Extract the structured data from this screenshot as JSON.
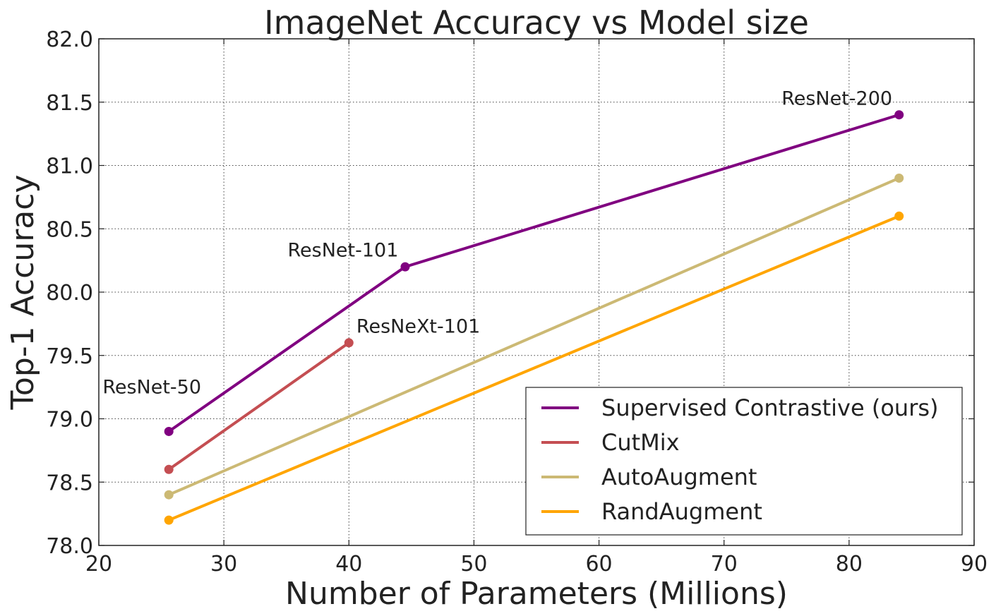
{
  "chart_data": {
    "type": "line",
    "title": "ImageNet Accuracy vs Model size",
    "xlabel": "Number of Parameters (Millions)",
    "ylabel": "Top-1 Accuracy",
    "xlim": [
      20,
      90
    ],
    "ylim": [
      78.0,
      82.0
    ],
    "xticks": [
      20,
      30,
      40,
      50,
      60,
      70,
      80,
      90
    ],
    "yticks": [
      78.0,
      78.5,
      79.0,
      79.5,
      80.0,
      80.5,
      81.0,
      81.5,
      82.0
    ],
    "xtick_labels": [
      "20",
      "30",
      "40",
      "50",
      "60",
      "70",
      "80",
      "90"
    ],
    "ytick_labels": [
      "78.0",
      "78.5",
      "79.0",
      "79.5",
      "80.0",
      "80.5",
      "81.0",
      "81.5",
      "82.0"
    ],
    "grid": true,
    "legend_position": "bottom-right",
    "series": [
      {
        "name": "Supervised Contrastive (ours)",
        "color": "#800080",
        "x": [
          25.6,
          44.5,
          84.0
        ],
        "y": [
          78.9,
          80.2,
          81.4
        ]
      },
      {
        "name": "CutMix",
        "color": "#c44e52",
        "x": [
          25.6,
          40.0
        ],
        "y": [
          78.6,
          79.6
        ]
      },
      {
        "name": "AutoAugment",
        "color": "#ccb974",
        "x": [
          25.6,
          84.0
        ],
        "y": [
          78.4,
          80.9
        ]
      },
      {
        "name": "RandAugment",
        "color": "#ffa500",
        "x": [
          25.6,
          84.0
        ],
        "y": [
          78.2,
          80.6
        ]
      }
    ],
    "annotations": [
      {
        "text": "ResNet-50",
        "x": 20.3,
        "y": 79.2
      },
      {
        "text": "ResNet-101",
        "x": 35.1,
        "y": 80.28
      },
      {
        "text": "ResNeXt-101",
        "x": 40.6,
        "y": 79.68
      },
      {
        "text": "ResNet-200",
        "x": 74.6,
        "y": 81.48
      }
    ]
  }
}
